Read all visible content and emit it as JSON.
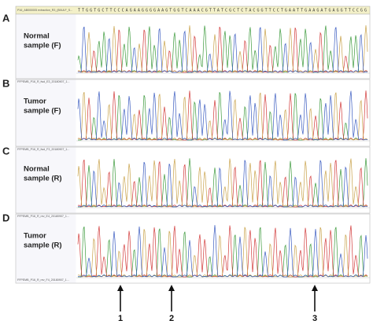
{
  "figure": {
    "sequence": "TTGGTGCTTCCCAGAAGGGGAAGTGGTCAAACGTTATCGCTCTACGGTTCCTGAATTGAAGATGAGGTTCCGG",
    "reference_label": "P16_AB000005 extraction_R3_(B0ULF_S...",
    "panels": [
      {
        "letter": "A",
        "title": [
          "Normal",
          "sample (F)"
        ]
      },
      {
        "letter": "B",
        "title": [
          "Tumor",
          "sample (F)"
        ],
        "track": "FFPEMB_P16_R_fwd_E3_20180907_1..."
      },
      {
        "letter": "C",
        "title": [
          "Normal",
          "sample (R)"
        ],
        "track": "FFPEMB_P16_R_fwd_F3_20180907_1..."
      },
      {
        "letter": "D",
        "title": [
          "Tumor",
          "sample (R)"
        ],
        "track": "FFPEMB_P16_R_rev_E4_20180907_1..."
      }
    ],
    "last_track": "FFPEMB_P16_R_rev_F4_20180907_1...",
    "arrows": [
      "1",
      "2",
      "3"
    ]
  }
}
